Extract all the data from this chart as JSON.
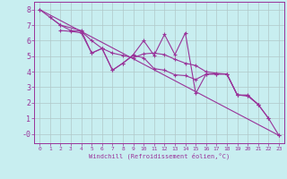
{
  "xlabel": "Windchill (Refroidissement éolien,°C)",
  "background_color": "#c8eef0",
  "grid_color": "#b0c8c8",
  "line_color": "#993399",
  "spine_color": "#993399",
  "xlim": [
    -0.5,
    23.5
  ],
  "ylim": [
    -0.6,
    8.5
  ],
  "xticks": [
    0,
    1,
    2,
    3,
    4,
    5,
    6,
    7,
    8,
    9,
    10,
    11,
    12,
    13,
    14,
    15,
    16,
    17,
    18,
    19,
    20,
    21,
    22,
    23
  ],
  "yticks": [
    0,
    1,
    2,
    3,
    4,
    5,
    6,
    7,
    8
  ],
  "ytick_labels": [
    "-0",
    "1",
    "2",
    "3",
    "4",
    "5",
    "6",
    "7",
    "8"
  ],
  "series": [
    {
      "x": [
        0,
        23
      ],
      "y": [
        8.0,
        -0.1
      ]
    },
    {
      "x": [
        1,
        2,
        3,
        4,
        5,
        6,
        7,
        8,
        9,
        10,
        11,
        12,
        13,
        14,
        15,
        16,
        17,
        18,
        19,
        20,
        21,
        22
      ],
      "y": [
        7.5,
        7.0,
        6.65,
        6.6,
        6.0,
        5.5,
        5.2,
        5.05,
        4.9,
        5.15,
        5.2,
        5.1,
        4.8,
        4.55,
        4.4,
        4.0,
        3.9,
        3.85,
        2.5,
        2.5,
        1.9,
        1.0
      ]
    },
    {
      "x": [
        2,
        3,
        4,
        5,
        6,
        7,
        8,
        9,
        10,
        11,
        12,
        13,
        14,
        15,
        16,
        17,
        18,
        19,
        20,
        21
      ],
      "y": [
        6.65,
        6.6,
        6.5,
        5.2,
        5.5,
        4.1,
        4.55,
        5.05,
        4.9,
        4.2,
        4.1,
        3.8,
        3.75,
        3.5,
        3.85,
        3.85,
        3.85,
        2.5,
        2.45,
        1.9
      ]
    },
    {
      "x": [
        0,
        2,
        4,
        5,
        6,
        7,
        8,
        9,
        10,
        11,
        12,
        13,
        14,
        15,
        16,
        17,
        18,
        19,
        20,
        21,
        22,
        23
      ],
      "y": [
        8.0,
        7.0,
        6.65,
        5.2,
        5.5,
        4.1,
        4.55,
        5.1,
        6.0,
        5.05,
        6.4,
        5.1,
        6.5,
        2.6,
        3.85,
        3.85,
        3.85,
        2.5,
        2.45,
        1.9,
        1.0,
        -0.1
      ]
    }
  ]
}
